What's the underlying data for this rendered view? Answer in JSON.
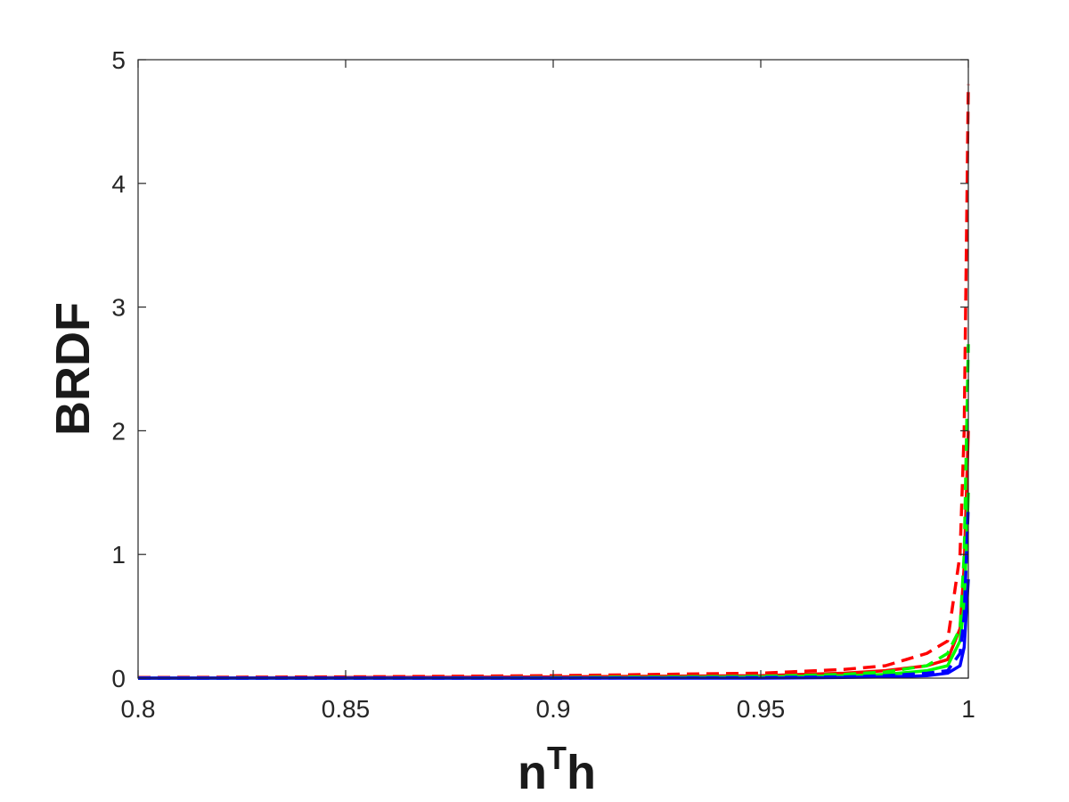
{
  "chart_data": {
    "type": "line",
    "xlabel": [
      "n",
      "T",
      "h"
    ],
    "ylabel": "BRDF",
    "x": [
      0.8,
      0.85,
      0.9,
      0.95,
      0.97,
      0.98,
      0.99,
      0.995,
      0.998,
      0.999,
      1.0
    ],
    "series": [
      {
        "color": "#ff0000",
        "dashed": false,
        "values": [
          0,
          0.005,
          0.01,
          0.02,
          0.04,
          0.06,
          0.1,
          0.15,
          0.4,
          0.9,
          2.0
        ]
      },
      {
        "color": "#ff0000",
        "dashed": true,
        "values": [
          0.005,
          0.01,
          0.02,
          0.04,
          0.07,
          0.1,
          0.2,
          0.3,
          1.0,
          2.0,
          4.8
        ]
      },
      {
        "color": "#00ff00",
        "dashed": false,
        "values": [
          0,
          0,
          0,
          0.01,
          0.02,
          0.03,
          0.06,
          0.1,
          0.3,
          0.6,
          1.5
        ]
      },
      {
        "color": "#00ff00",
        "dashed": true,
        "values": [
          0,
          0,
          0.005,
          0.015,
          0.03,
          0.05,
          0.1,
          0.2,
          0.4,
          1.0,
          2.7
        ]
      },
      {
        "color": "#0000ff",
        "dashed": false,
        "values": [
          0,
          0,
          0,
          0,
          0.005,
          0.01,
          0.02,
          0.04,
          0.1,
          0.25,
          0.8
        ]
      },
      {
        "color": "#0000ff",
        "dashed": true,
        "values": [
          0,
          0,
          0,
          0.005,
          0.01,
          0.02,
          0.04,
          0.06,
          0.2,
          0.5,
          1.4
        ]
      }
    ],
    "xlim": [
      0.8,
      1
    ],
    "xticks": [
      0.8,
      0.85,
      0.9,
      0.95,
      1
    ],
    "ylim": [
      0,
      5
    ],
    "yticks": [
      0,
      1,
      2,
      3,
      4,
      5
    ],
    "grid": false
  }
}
